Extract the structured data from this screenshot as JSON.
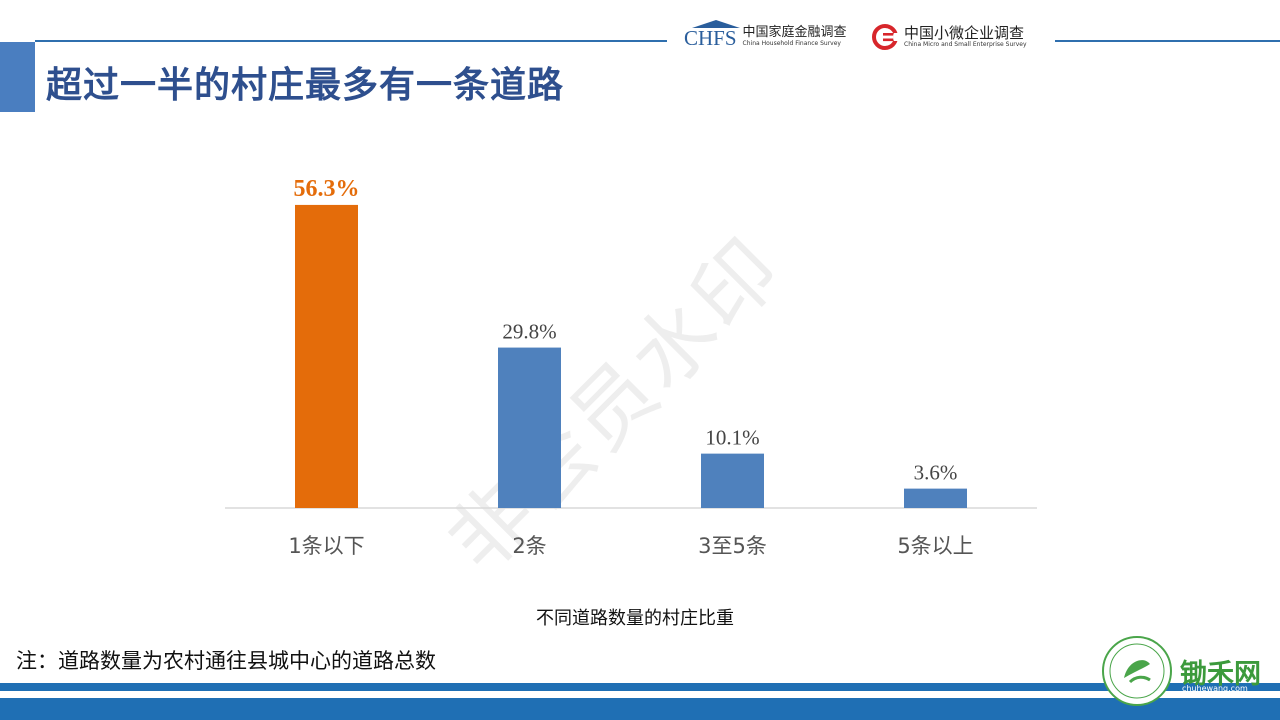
{
  "title": "超过一半的村庄最多有一条道路",
  "logos": {
    "chfs_mark": "CHFS",
    "chfs_cn": "中国家庭金融调查",
    "chfs_en": "China Household Finance Survey",
    "csmes_cn": "中国小微企业调查",
    "csmes_en": "China Micro and Small Enterprise Survey"
  },
  "watermark": "非会员水印",
  "note": "注：道路数量为农村通往县城中心的道路总数",
  "badge": {
    "brand": "锄禾网",
    "sub": "chuhewang.com",
    "ring_text": "CHUHE MEANS ORGANICS"
  },
  "colors": {
    "highlight": "#e46c0a",
    "bar": "#4f81bd",
    "accent": "#4a7ec0",
    "title": "#2e4f8e"
  },
  "chart_data": {
    "type": "bar",
    "categories": [
      "1条以下",
      "2条",
      "3至5条",
      "5条以上"
    ],
    "values": [
      56.3,
      29.8,
      10.1,
      3.6
    ],
    "data_labels": [
      "56.3%",
      "29.8%",
      "10.1%",
      "3.6%"
    ],
    "highlight_index": 0,
    "xlabel": "不同道路数量的村庄比重",
    "ylabel": "",
    "ylim": [
      0,
      60
    ],
    "grid": false,
    "legend": "none"
  }
}
